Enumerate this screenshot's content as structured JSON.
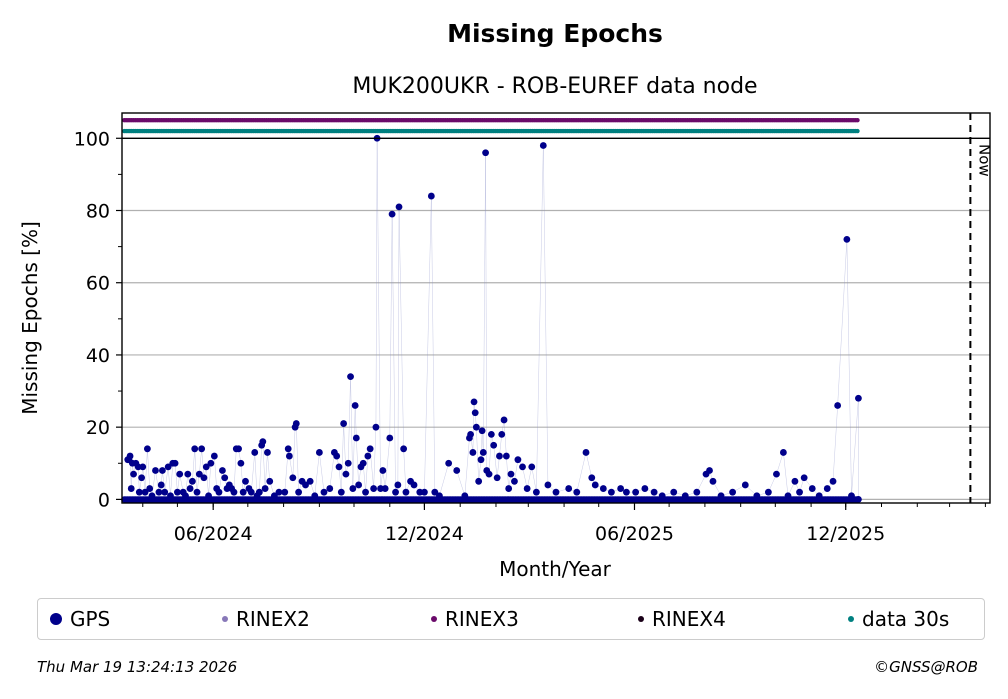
{
  "chart_data": {
    "type": "scatter",
    "title": "Missing Epochs",
    "subtitle": "MUK200UKR - ROB-EUREF data node",
    "xlabel": "Month/Year",
    "ylabel": "Missing Epochs [%]",
    "x_ticks": [
      "06/2024",
      "12/2024",
      "06/2025",
      "12/2025"
    ],
    "y_ticks": [
      "0",
      "20",
      "40",
      "60",
      "80",
      "100"
    ],
    "ylim": [
      -1,
      107
    ],
    "grid": true,
    "now_label": "Now",
    "legend": [
      {
        "name": "GPS",
        "color": "#00008b"
      },
      {
        "name": "RINEX2",
        "color": "#8878b8"
      },
      {
        "name": "RINEX3",
        "color": "#6a0a6a"
      },
      {
        "name": "RINEX4",
        "color": "#1a0018"
      },
      {
        "name": "data 30s",
        "color": "#008080"
      }
    ],
    "gps_series_color": "#00008b",
    "rinex3_color": "#6a0a6a",
    "data30s_color": "#008080",
    "series": [
      {
        "name": "GPS",
        "points": [
          [
            "2024-03-19",
            11
          ],
          [
            "2024-03-20",
            11
          ],
          [
            "2024-03-21",
            12
          ],
          [
            "2024-03-22",
            3
          ],
          [
            "2024-03-23",
            10
          ],
          [
            "2024-03-24",
            7
          ],
          [
            "2024-03-26",
            10
          ],
          [
            "2024-03-28",
            9
          ],
          [
            "2024-03-29",
            2
          ],
          [
            "2024-03-31",
            6
          ],
          [
            "2024-04-01",
            9
          ],
          [
            "2024-04-03",
            2
          ],
          [
            "2024-04-05",
            14
          ],
          [
            "2024-04-07",
            3
          ],
          [
            "2024-04-09",
            1
          ],
          [
            "2024-04-12",
            8
          ],
          [
            "2024-04-15",
            2
          ],
          [
            "2024-04-17",
            4
          ],
          [
            "2024-04-18",
            8
          ],
          [
            "2024-04-20",
            2
          ],
          [
            "2024-04-23",
            9
          ],
          [
            "2024-04-25",
            1
          ],
          [
            "2024-04-27",
            10
          ],
          [
            "2024-04-29",
            10
          ],
          [
            "2024-05-01",
            2
          ],
          [
            "2024-05-03",
            7
          ],
          [
            "2024-05-06",
            2
          ],
          [
            "2024-05-08",
            1
          ],
          [
            "2024-05-10",
            7
          ],
          [
            "2024-05-12",
            3
          ],
          [
            "2024-05-14",
            5
          ],
          [
            "2024-05-16",
            14
          ],
          [
            "2024-05-18",
            2
          ],
          [
            "2024-05-20",
            7
          ],
          [
            "2024-05-22",
            14
          ],
          [
            "2024-05-24",
            6
          ],
          [
            "2024-05-26",
            9
          ],
          [
            "2024-05-28",
            1
          ],
          [
            "2024-05-30",
            10
          ],
          [
            "2024-06-02",
            12
          ],
          [
            "2024-06-04",
            3
          ],
          [
            "2024-06-06",
            2
          ],
          [
            "2024-06-09",
            8
          ],
          [
            "2024-06-11",
            6
          ],
          [
            "2024-06-13",
            3
          ],
          [
            "2024-06-15",
            4
          ],
          [
            "2024-06-17",
            3
          ],
          [
            "2024-06-19",
            2
          ],
          [
            "2024-06-21",
            14
          ],
          [
            "2024-06-23",
            14
          ],
          [
            "2024-06-25",
            10
          ],
          [
            "2024-06-27",
            2
          ],
          [
            "2024-06-29",
            5
          ],
          [
            "2024-07-02",
            3
          ],
          [
            "2024-07-04",
            2
          ],
          [
            "2024-07-07",
            13
          ],
          [
            "2024-07-09",
            1
          ],
          [
            "2024-07-11",
            2
          ],
          [
            "2024-07-13",
            15
          ],
          [
            "2024-07-14",
            16
          ],
          [
            "2024-07-16",
            3
          ],
          [
            "2024-07-18",
            13
          ],
          [
            "2024-07-20",
            5
          ],
          [
            "2024-07-24",
            1
          ],
          [
            "2024-07-28",
            2
          ],
          [
            "2024-08-02",
            2
          ],
          [
            "2024-08-05",
            14
          ],
          [
            "2024-08-06",
            12
          ],
          [
            "2024-08-09",
            6
          ],
          [
            "2024-08-11",
            20
          ],
          [
            "2024-08-12",
            21
          ],
          [
            "2024-08-14",
            2
          ],
          [
            "2024-08-17",
            5
          ],
          [
            "2024-08-20",
            4
          ],
          [
            "2024-08-24",
            5
          ],
          [
            "2024-08-28",
            1
          ],
          [
            "2024-09-01",
            13
          ],
          [
            "2024-09-05",
            2
          ],
          [
            "2024-09-10",
            3
          ],
          [
            "2024-09-14",
            13
          ],
          [
            "2024-09-16",
            12
          ],
          [
            "2024-09-18",
            9
          ],
          [
            "2024-09-20",
            2
          ],
          [
            "2024-09-22",
            21
          ],
          [
            "2024-09-24",
            7
          ],
          [
            "2024-09-26",
            10
          ],
          [
            "2024-09-28",
            34
          ],
          [
            "2024-09-30",
            3
          ],
          [
            "2024-10-02",
            26
          ],
          [
            "2024-10-03",
            17
          ],
          [
            "2024-10-05",
            4
          ],
          [
            "2024-10-07",
            9
          ],
          [
            "2024-10-09",
            10
          ],
          [
            "2024-10-11",
            2
          ],
          [
            "2024-10-13",
            12
          ],
          [
            "2024-10-15",
            14
          ],
          [
            "2024-10-18",
            3
          ],
          [
            "2024-10-20",
            20
          ],
          [
            "2024-10-21",
            100
          ],
          [
            "2024-10-24",
            3
          ],
          [
            "2024-10-26",
            8
          ],
          [
            "2024-10-28",
            3
          ],
          [
            "2024-11-01",
            17
          ],
          [
            "2024-11-03",
            79
          ],
          [
            "2024-11-06",
            2
          ],
          [
            "2024-11-08",
            4
          ],
          [
            "2024-11-09",
            81
          ],
          [
            "2024-11-13",
            14
          ],
          [
            "2024-11-15",
            2
          ],
          [
            "2024-11-19",
            5
          ],
          [
            "2024-11-22",
            4
          ],
          [
            "2024-11-27",
            2
          ],
          [
            "2024-12-01",
            2
          ],
          [
            "2024-12-07",
            84
          ],
          [
            "2024-12-10",
            2
          ],
          [
            "2024-12-14",
            1
          ],
          [
            "2024-12-22",
            10
          ],
          [
            "2024-12-29",
            8
          ],
          [
            "2025-01-05",
            1
          ],
          [
            "2025-01-09",
            17
          ],
          [
            "2025-01-10",
            18
          ],
          [
            "2025-01-12",
            13
          ],
          [
            "2025-01-13",
            27
          ],
          [
            "2025-01-14",
            24
          ],
          [
            "2025-01-15",
            20
          ],
          [
            "2025-01-17",
            5
          ],
          [
            "2025-01-19",
            11
          ],
          [
            "2025-01-20",
            19
          ],
          [
            "2025-01-21",
            13
          ],
          [
            "2025-01-23",
            96
          ],
          [
            "2025-01-24",
            8
          ],
          [
            "2025-01-26",
            7
          ],
          [
            "2025-01-28",
            18
          ],
          [
            "2025-01-30",
            15
          ],
          [
            "2025-02-02",
            6
          ],
          [
            "2025-02-04",
            12
          ],
          [
            "2025-02-06",
            18
          ],
          [
            "2025-02-08",
            22
          ],
          [
            "2025-02-10",
            12
          ],
          [
            "2025-02-12",
            3
          ],
          [
            "2025-02-14",
            7
          ],
          [
            "2025-02-17",
            5
          ],
          [
            "2025-02-20",
            11
          ],
          [
            "2025-02-24",
            9
          ],
          [
            "2025-02-28",
            3
          ],
          [
            "2025-03-04",
            9
          ],
          [
            "2025-03-08",
            2
          ],
          [
            "2025-03-14",
            98
          ],
          [
            "2025-03-18",
            4
          ],
          [
            "2025-03-25",
            2
          ],
          [
            "2025-04-05",
            3
          ],
          [
            "2025-04-12",
            2
          ],
          [
            "2025-04-20",
            13
          ],
          [
            "2025-04-25",
            6
          ],
          [
            "2025-04-28",
            4
          ],
          [
            "2025-05-05",
            3
          ],
          [
            "2025-05-12",
            2
          ],
          [
            "2025-05-20",
            3
          ],
          [
            "2025-05-25",
            2
          ],
          [
            "2025-06-02",
            2
          ],
          [
            "2025-06-10",
            3
          ],
          [
            "2025-06-18",
            2
          ],
          [
            "2025-06-25",
            1
          ],
          [
            "2025-07-05",
            2
          ],
          [
            "2025-07-15",
            1
          ],
          [
            "2025-07-25",
            2
          ],
          [
            "2025-08-02",
            7
          ],
          [
            "2025-08-05",
            8
          ],
          [
            "2025-08-08",
            5
          ],
          [
            "2025-08-15",
            1
          ],
          [
            "2025-08-25",
            2
          ],
          [
            "2025-09-05",
            4
          ],
          [
            "2025-09-15",
            1
          ],
          [
            "2025-09-25",
            2
          ],
          [
            "2025-10-02",
            7
          ],
          [
            "2025-10-08",
            13
          ],
          [
            "2025-10-12",
            1
          ],
          [
            "2025-10-18",
            5
          ],
          [
            "2025-10-22",
            2
          ],
          [
            "2025-10-26",
            6
          ],
          [
            "2025-11-02",
            3
          ],
          [
            "2025-11-08",
            1
          ],
          [
            "2025-11-15",
            3
          ],
          [
            "2025-11-20",
            5
          ],
          [
            "2025-11-24",
            26
          ],
          [
            "2025-12-02",
            72
          ],
          [
            "2025-12-06",
            1
          ],
          [
            "2025-12-12",
            28
          ],
          [
            "2025-12-12",
            0
          ]
        ]
      }
    ],
    "x_start": "2024-03-14",
    "x_end": "2026-04-05",
    "now_date": "2026-03-19",
    "x_tick_dates": [
      "2024-06-01",
      "2024-12-01",
      "2025-06-01",
      "2025-12-01"
    ],
    "status_rows_end": {
      "rinex3": "2025-12-12",
      "data30s": "2025-12-12"
    }
  },
  "legend_box": {
    "items": [
      {
        "label": "GPS"
      },
      {
        "label": "RINEX2"
      },
      {
        "label": "RINEX3"
      },
      {
        "label": "RINEX4"
      },
      {
        "label": "data 30s"
      }
    ]
  },
  "footer": {
    "timestamp": "Thu Mar 19 13:24:13 2026",
    "copyright": "©GNSS@ROB"
  }
}
